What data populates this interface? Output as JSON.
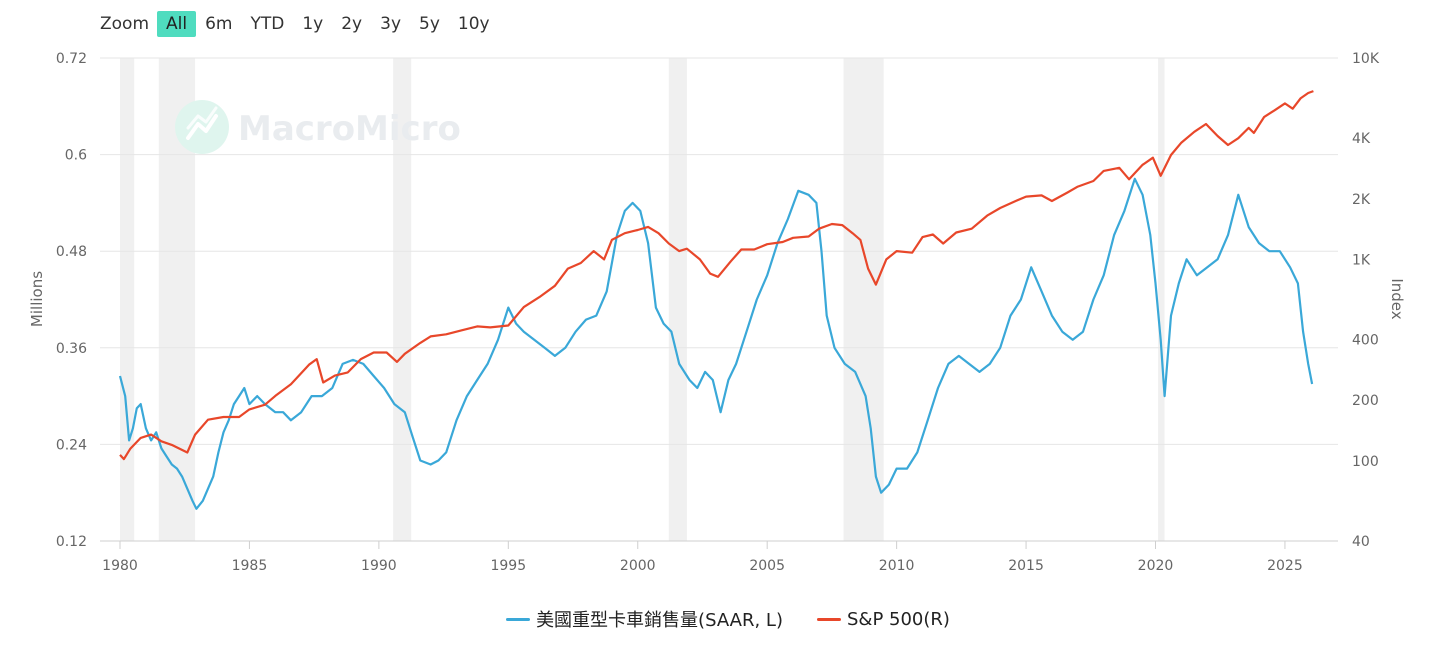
{
  "zoom": {
    "label": "Zoom",
    "buttons": [
      "All",
      "6m",
      "YTD",
      "1y",
      "2y",
      "3y",
      "5y",
      "10y"
    ],
    "active": "All",
    "active_color": "#4fdcbf"
  },
  "watermark": {
    "text": "MacroMicro",
    "icon": "macromicro-logo-icon"
  },
  "chart_data": {
    "type": "line",
    "grid": true,
    "legend_position": "bottom",
    "x_axis": {
      "type": "year",
      "range": [
        1980,
        2026.2
      ],
      "ticks": [
        "1980",
        "1985",
        "1990",
        "1995",
        "2000",
        "2005",
        "2010",
        "2015",
        "2020",
        "2025"
      ]
    },
    "y_left": {
      "label": "Millions",
      "range": [
        0.12,
        0.72
      ],
      "ticks": [
        "0.12",
        "0.24",
        "0.36",
        "0.48",
        "0.6",
        "0.72"
      ]
    },
    "y_right": {
      "label": "Index",
      "scale": "log",
      "range": [
        40,
        10000
      ],
      "ticks": [
        "40",
        "100",
        "200",
        "400",
        "1K",
        "2K",
        "4K",
        "10K"
      ],
      "tick_values": [
        40,
        100,
        200,
        400,
        1000,
        2000,
        4000,
        10000
      ]
    },
    "recessions": [
      [
        1980.0,
        1980.55
      ],
      [
        1981.5,
        1982.9
      ],
      [
        1990.55,
        1991.25
      ],
      [
        2001.2,
        2001.9
      ],
      [
        2007.95,
        2009.5
      ],
      [
        2020.1,
        2020.35
      ]
    ],
    "series": [
      {
        "name": "美國重型卡車銷售量(SAAR, L)",
        "axis": "left",
        "color": "#3aa8d8",
        "points": [
          [
            1980.0,
            0.325
          ],
          [
            1980.2,
            0.3
          ],
          [
            1980.35,
            0.245
          ],
          [
            1980.5,
            0.26
          ],
          [
            1980.65,
            0.285
          ],
          [
            1980.8,
            0.29
          ],
          [
            1981.0,
            0.26
          ],
          [
            1981.2,
            0.245
          ],
          [
            1981.4,
            0.255
          ],
          [
            1981.6,
            0.235
          ],
          [
            1981.8,
            0.225
          ],
          [
            1982.0,
            0.215
          ],
          [
            1982.2,
            0.21
          ],
          [
            1982.4,
            0.2
          ],
          [
            1982.6,
            0.185
          ],
          [
            1982.8,
            0.17
          ],
          [
            1982.95,
            0.16
          ],
          [
            1983.2,
            0.17
          ],
          [
            1983.4,
            0.185
          ],
          [
            1983.6,
            0.2
          ],
          [
            1983.8,
            0.23
          ],
          [
            1984.0,
            0.255
          ],
          [
            1984.2,
            0.27
          ],
          [
            1984.4,
            0.29
          ],
          [
            1984.6,
            0.3
          ],
          [
            1984.8,
            0.31
          ],
          [
            1985.0,
            0.29
          ],
          [
            1985.3,
            0.3
          ],
          [
            1985.6,
            0.29
          ],
          [
            1986.0,
            0.28
          ],
          [
            1986.3,
            0.28
          ],
          [
            1986.6,
            0.27
          ],
          [
            1987.0,
            0.28
          ],
          [
            1987.4,
            0.3
          ],
          [
            1987.8,
            0.3
          ],
          [
            1988.2,
            0.31
          ],
          [
            1988.6,
            0.34
          ],
          [
            1989.0,
            0.345
          ],
          [
            1989.4,
            0.34
          ],
          [
            1989.8,
            0.325
          ],
          [
            1990.2,
            0.31
          ],
          [
            1990.6,
            0.29
          ],
          [
            1991.0,
            0.28
          ],
          [
            1991.3,
            0.25
          ],
          [
            1991.6,
            0.22
          ],
          [
            1992.0,
            0.215
          ],
          [
            1992.3,
            0.22
          ],
          [
            1992.6,
            0.23
          ],
          [
            1993.0,
            0.27
          ],
          [
            1993.4,
            0.3
          ],
          [
            1993.8,
            0.32
          ],
          [
            1994.2,
            0.34
          ],
          [
            1994.6,
            0.37
          ],
          [
            1995.0,
            0.41
          ],
          [
            1995.3,
            0.39
          ],
          [
            1995.6,
            0.38
          ],
          [
            1996.0,
            0.37
          ],
          [
            1996.4,
            0.36
          ],
          [
            1996.8,
            0.35
          ],
          [
            1997.2,
            0.36
          ],
          [
            1997.6,
            0.38
          ],
          [
            1998.0,
            0.395
          ],
          [
            1998.4,
            0.4
          ],
          [
            1998.8,
            0.43
          ],
          [
            1999.2,
            0.5
          ],
          [
            1999.5,
            0.53
          ],
          [
            1999.8,
            0.54
          ],
          [
            2000.1,
            0.53
          ],
          [
            2000.4,
            0.49
          ],
          [
            2000.7,
            0.41
          ],
          [
            2001.0,
            0.39
          ],
          [
            2001.3,
            0.38
          ],
          [
            2001.6,
            0.34
          ],
          [
            2002.0,
            0.32
          ],
          [
            2002.3,
            0.31
          ],
          [
            2002.6,
            0.33
          ],
          [
            2002.9,
            0.32
          ],
          [
            2003.2,
            0.28
          ],
          [
            2003.5,
            0.32
          ],
          [
            2003.8,
            0.34
          ],
          [
            2004.2,
            0.38
          ],
          [
            2004.6,
            0.42
          ],
          [
            2005.0,
            0.45
          ],
          [
            2005.4,
            0.49
          ],
          [
            2005.8,
            0.52
          ],
          [
            2006.2,
            0.555
          ],
          [
            2006.6,
            0.55
          ],
          [
            2006.9,
            0.54
          ],
          [
            2007.1,
            0.48
          ],
          [
            2007.3,
            0.4
          ],
          [
            2007.6,
            0.36
          ],
          [
            2008.0,
            0.34
          ],
          [
            2008.4,
            0.33
          ],
          [
            2008.8,
            0.3
          ],
          [
            2009.0,
            0.26
          ],
          [
            2009.2,
            0.2
          ],
          [
            2009.4,
            0.18
          ],
          [
            2009.7,
            0.19
          ],
          [
            2010.0,
            0.21
          ],
          [
            2010.4,
            0.21
          ],
          [
            2010.8,
            0.23
          ],
          [
            2011.2,
            0.27
          ],
          [
            2011.6,
            0.31
          ],
          [
            2012.0,
            0.34
          ],
          [
            2012.4,
            0.35
          ],
          [
            2012.8,
            0.34
          ],
          [
            2013.2,
            0.33
          ],
          [
            2013.6,
            0.34
          ],
          [
            2014.0,
            0.36
          ],
          [
            2014.4,
            0.4
          ],
          [
            2014.8,
            0.42
          ],
          [
            2015.2,
            0.46
          ],
          [
            2015.6,
            0.43
          ],
          [
            2016.0,
            0.4
          ],
          [
            2016.4,
            0.38
          ],
          [
            2016.8,
            0.37
          ],
          [
            2017.2,
            0.38
          ],
          [
            2017.6,
            0.42
          ],
          [
            2018.0,
            0.45
          ],
          [
            2018.4,
            0.5
          ],
          [
            2018.8,
            0.53
          ],
          [
            2019.2,
            0.57
          ],
          [
            2019.5,
            0.55
          ],
          [
            2019.8,
            0.5
          ],
          [
            2020.0,
            0.44
          ],
          [
            2020.2,
            0.37
          ],
          [
            2020.35,
            0.3
          ],
          [
            2020.6,
            0.4
          ],
          [
            2020.9,
            0.44
          ],
          [
            2021.2,
            0.47
          ],
          [
            2021.6,
            0.45
          ],
          [
            2022.0,
            0.46
          ],
          [
            2022.4,
            0.47
          ],
          [
            2022.8,
            0.5
          ],
          [
            2023.2,
            0.55
          ],
          [
            2023.6,
            0.51
          ],
          [
            2024.0,
            0.49
          ],
          [
            2024.4,
            0.48
          ],
          [
            2024.8,
            0.48
          ],
          [
            2025.2,
            0.46
          ],
          [
            2025.5,
            0.44
          ],
          [
            2025.7,
            0.38
          ],
          [
            2025.9,
            0.34
          ],
          [
            2026.05,
            0.315
          ]
        ]
      },
      {
        "name": "S&P 500(R)",
        "axis": "right",
        "color": "#e8472a",
        "points": [
          [
            1980.0,
            107
          ],
          [
            1980.15,
            102
          ],
          [
            1980.4,
            115
          ],
          [
            1980.8,
            130
          ],
          [
            1981.2,
            135
          ],
          [
            1981.6,
            125
          ],
          [
            1982.0,
            120
          ],
          [
            1982.6,
            110
          ],
          [
            1982.9,
            135
          ],
          [
            1983.4,
            160
          ],
          [
            1984.0,
            165
          ],
          [
            1984.6,
            165
          ],
          [
            1985.0,
            180
          ],
          [
            1985.6,
            190
          ],
          [
            1986.0,
            210
          ],
          [
            1986.6,
            240
          ],
          [
            1987.3,
            300
          ],
          [
            1987.6,
            320
          ],
          [
            1987.85,
            245
          ],
          [
            1988.3,
            265
          ],
          [
            1988.8,
            275
          ],
          [
            1989.3,
            320
          ],
          [
            1989.8,
            345
          ],
          [
            1990.3,
            345
          ],
          [
            1990.7,
            310
          ],
          [
            1991.0,
            340
          ],
          [
            1991.6,
            385
          ],
          [
            1992.0,
            415
          ],
          [
            1992.6,
            425
          ],
          [
            1993.2,
            445
          ],
          [
            1993.8,
            465
          ],
          [
            1994.3,
            460
          ],
          [
            1995.0,
            470
          ],
          [
            1995.6,
            580
          ],
          [
            1996.2,
            650
          ],
          [
            1996.8,
            740
          ],
          [
            1997.3,
            900
          ],
          [
            1997.8,
            960
          ],
          [
            1998.3,
            1100
          ],
          [
            1998.7,
            1000
          ],
          [
            1999.0,
            1250
          ],
          [
            1999.5,
            1350
          ],
          [
            2000.0,
            1400
          ],
          [
            2000.4,
            1450
          ],
          [
            2000.8,
            1350
          ],
          [
            2001.2,
            1200
          ],
          [
            2001.6,
            1100
          ],
          [
            2001.9,
            1130
          ],
          [
            2002.4,
            1000
          ],
          [
            2002.8,
            850
          ],
          [
            2003.1,
            820
          ],
          [
            2003.6,
            980
          ],
          [
            2004.0,
            1120
          ],
          [
            2004.5,
            1120
          ],
          [
            2005.0,
            1190
          ],
          [
            2005.6,
            1220
          ],
          [
            2006.0,
            1280
          ],
          [
            2006.6,
            1300
          ],
          [
            2007.0,
            1420
          ],
          [
            2007.5,
            1500
          ],
          [
            2007.9,
            1480
          ],
          [
            2008.3,
            1350
          ],
          [
            2008.6,
            1250
          ],
          [
            2008.9,
            900
          ],
          [
            2009.2,
            750
          ],
          [
            2009.6,
            1000
          ],
          [
            2010.0,
            1100
          ],
          [
            2010.6,
            1080
          ],
          [
            2011.0,
            1290
          ],
          [
            2011.4,
            1330
          ],
          [
            2011.8,
            1200
          ],
          [
            2012.3,
            1360
          ],
          [
            2012.9,
            1420
          ],
          [
            2013.5,
            1650
          ],
          [
            2014.0,
            1800
          ],
          [
            2014.6,
            1950
          ],
          [
            2015.0,
            2050
          ],
          [
            2015.6,
            2080
          ],
          [
            2016.0,
            1950
          ],
          [
            2016.6,
            2150
          ],
          [
            2017.0,
            2300
          ],
          [
            2017.6,
            2450
          ],
          [
            2018.0,
            2750
          ],
          [
            2018.6,
            2850
          ],
          [
            2018.98,
            2500
          ],
          [
            2019.5,
            2950
          ],
          [
            2019.9,
            3200
          ],
          [
            2020.2,
            2600
          ],
          [
            2020.6,
            3300
          ],
          [
            2021.0,
            3800
          ],
          [
            2021.5,
            4300
          ],
          [
            2021.95,
            4700
          ],
          [
            2022.4,
            4100
          ],
          [
            2022.8,
            3700
          ],
          [
            2023.2,
            4000
          ],
          [
            2023.6,
            4500
          ],
          [
            2023.8,
            4250
          ],
          [
            2024.2,
            5100
          ],
          [
            2024.6,
            5500
          ],
          [
            2025.0,
            5950
          ],
          [
            2025.3,
            5600
          ],
          [
            2025.6,
            6300
          ],
          [
            2025.9,
            6700
          ],
          [
            2026.1,
            6850
          ]
        ]
      }
    ]
  }
}
